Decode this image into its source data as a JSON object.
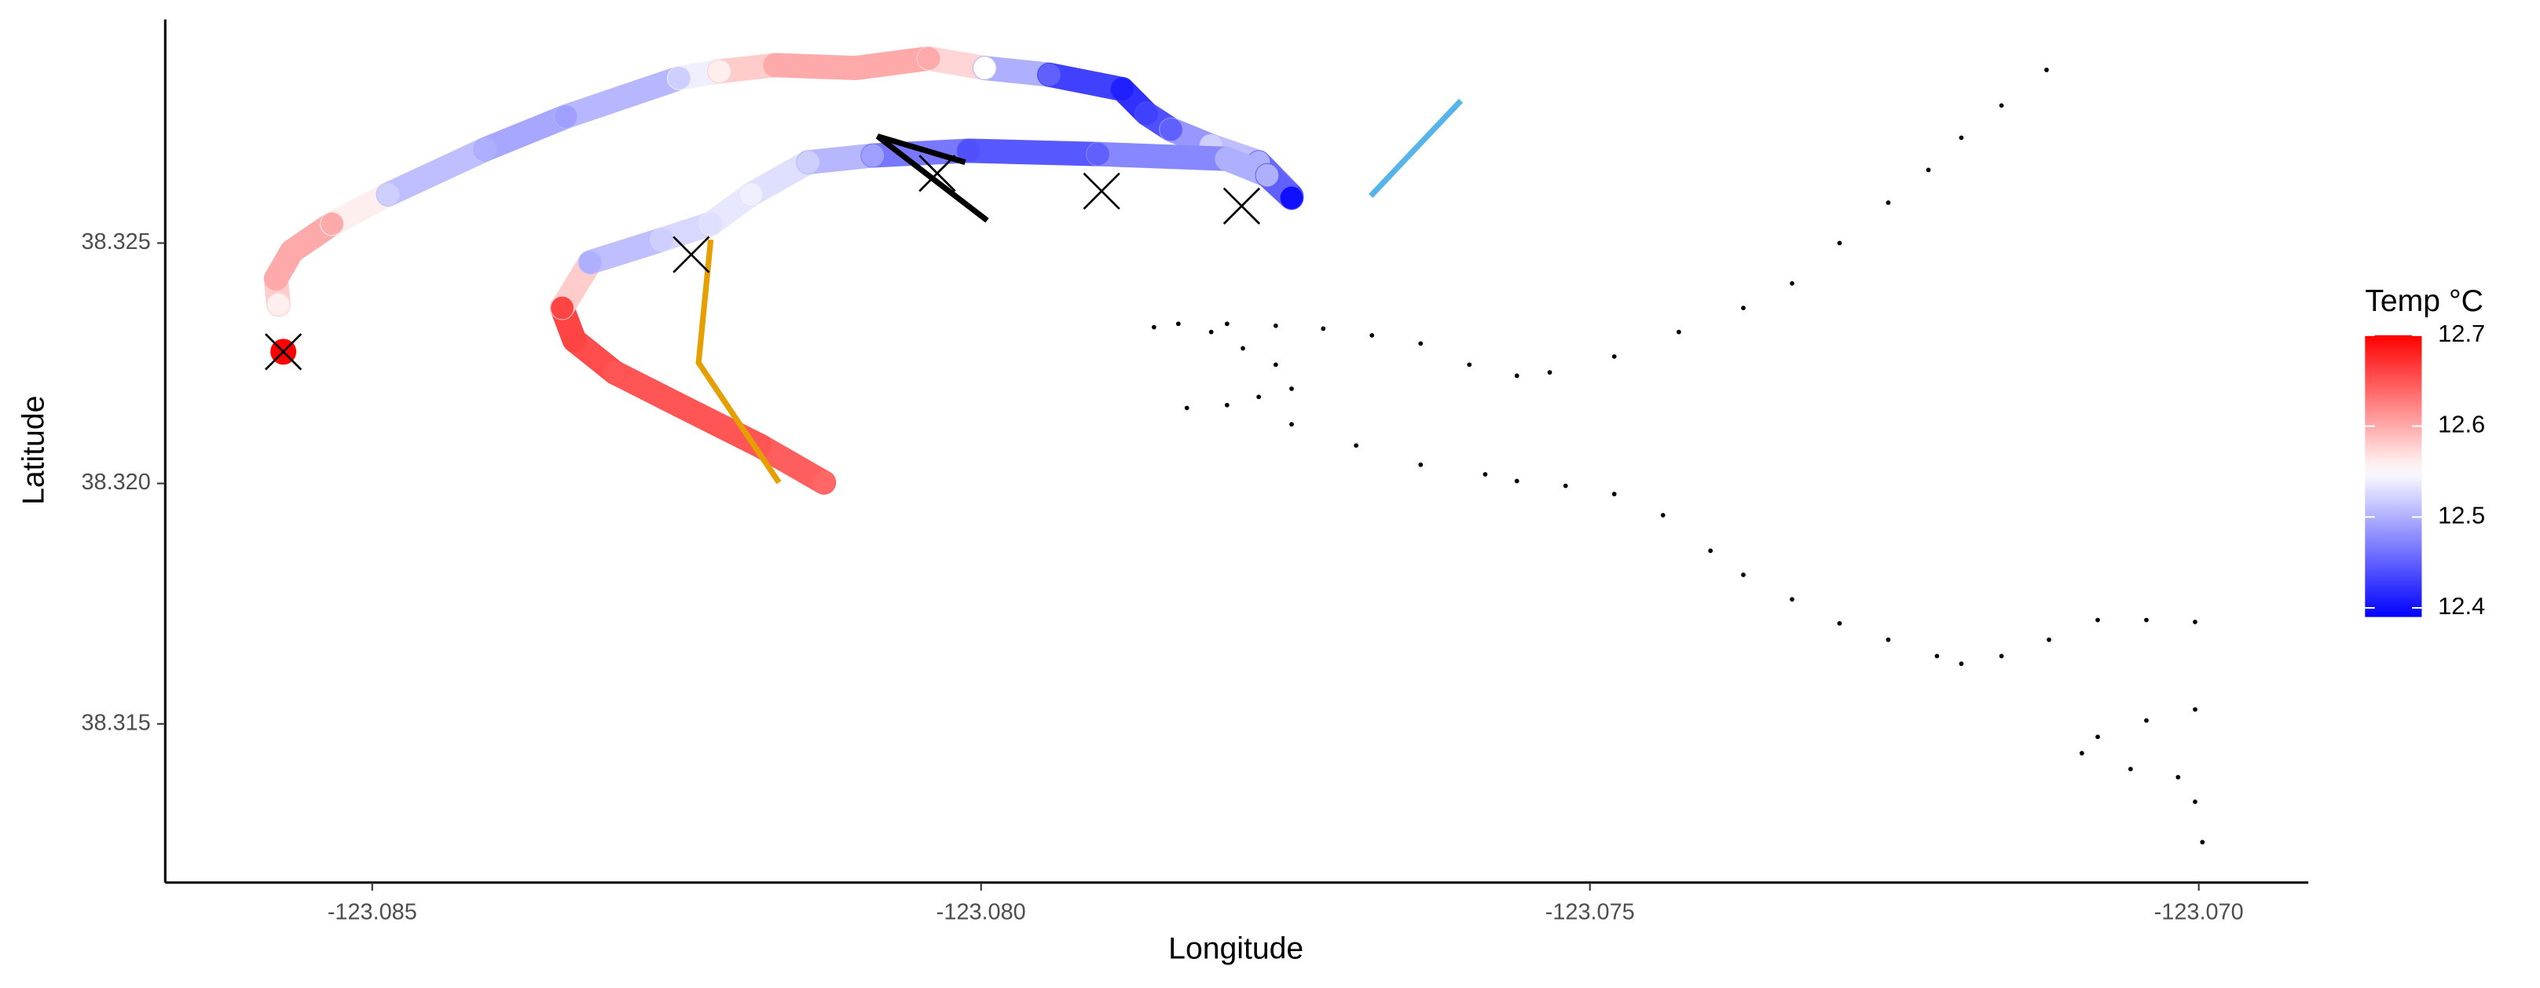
{
  "chart_data": {
    "type": "scatter",
    "x_label": "Longitude",
    "y_label": "Latitude",
    "xlim": [
      -123.0867,
      -123.0691
    ],
    "ylim": [
      38.3117,
      38.32965
    ],
    "xticks": [
      -123.085,
      {
        "value": -123.08,
        "label": "-123.080"
      },
      -123.075,
      {
        "value": -123.07,
        "label": "-123.070"
      }
    ],
    "yticks": [
      38.315,
      {
        "value": 38.32,
        "label": "38.320"
      },
      38.325
    ],
    "color_scale": {
      "title": "Temp °C",
      "low": "#0000ff",
      "mid": "#ffffff",
      "high": "#ff0000",
      "midpoint": 12.55,
      "lim": [
        12.39,
        12.7
      ],
      "ticks": [
        12.4,
        12.5,
        12.6,
        12.7
      ]
    },
    "tracks": [
      {
        "x": [
          -123.08577,
          -123.08579,
          -123.08566,
          -123.08533,
          -123.08487,
          -123.08407,
          -123.08341,
          -123.08248,
          -123.08215,
          -123.08169,
          -123.08103,
          -123.08043,
          -123.07997,
          -123.07944,
          -123.07884,
          -123.07864,
          -123.07844,
          -123.07811,
          -123.07772,
          -123.07745
        ],
        "y": [
          38.32372,
          38.32426,
          38.32483,
          38.3254,
          38.32601,
          38.32695,
          38.32763,
          38.32843,
          38.32857,
          38.3287,
          38.32864,
          38.32884,
          38.32864,
          38.3285,
          38.3282,
          38.32769,
          38.32736,
          38.32702,
          38.32668,
          38.32598
        ],
        "temp": [
          12.56,
          12.6,
          12.6,
          12.6,
          12.52,
          12.5,
          12.49,
          12.52,
          12.56,
          12.6,
          12.6,
          12.6,
          12.55,
          12.45,
          12.41,
          12.43,
          12.45,
          12.52,
          12.5,
          12.41
        ]
      },
      {
        "x": [
          -123.08129,
          -123.08182,
          -123.08248,
          -123.08301,
          -123.08334,
          -123.08344,
          -123.08321,
          -123.08262,
          -123.08222,
          -123.08189,
          -123.08142,
          -123.08089,
          -123.0801,
          -123.07904,
          -123.07798,
          -123.07765,
          -123.07745
        ],
        "y": [
          38.32002,
          38.32079,
          38.32163,
          38.32231,
          38.32298,
          38.32365,
          38.3246,
          38.32507,
          38.3254,
          38.32601,
          38.32668,
          38.32682,
          38.32692,
          38.32685,
          38.32675,
          38.32641,
          38.32594
        ],
        "temp": [
          12.64,
          12.65,
          12.65,
          12.65,
          12.66,
          12.66,
          12.5,
          12.52,
          12.53,
          12.54,
          12.52,
          12.49,
          12.44,
          12.45,
          12.5,
          12.5,
          12.4
        ]
      }
    ],
    "dots": {
      "color": "#000000",
      "x": [
        -123.07125,
        -123.07162,
        -123.07195,
        -123.07222,
        -123.07255,
        -123.07295,
        -123.07334,
        -123.07374,
        -123.07427,
        -123.0748,
        -123.07533,
        -123.0756,
        -123.07599,
        -123.07639,
        -123.07679,
        -123.07719,
        -123.07758,
        -123.07798,
        -123.07838,
        -123.07858,
        -123.07811,
        -123.07785,
        -123.07758,
        -123.07745,
        -123.07772,
        -123.07798,
        -123.07831,
        -123.07745,
        -123.07692,
        -123.07639,
        -123.07586,
        -123.0756,
        -123.0752,
        -123.0748,
        -123.0744,
        -123.07401,
        -123.07374,
        -123.07334,
        -123.07295,
        -123.07255,
        -123.07215,
        -123.07195,
        -123.07162,
        -123.07123,
        -123.07083,
        -123.07043,
        -123.07003,
        -123.07003,
        -123.07043,
        -123.07083,
        -123.07096,
        -123.07056,
        -123.07017,
        -123.07003,
        -123.06997
      ],
      "y": [
        38.3286,
        38.32786,
        38.32719,
        38.32652,
        38.32584,
        38.325,
        38.32416,
        38.32365,
        38.32315,
        38.32264,
        38.32231,
        38.32224,
        38.32247,
        38.32291,
        38.32308,
        38.32322,
        38.32328,
        38.32332,
        38.32332,
        38.32325,
        38.32315,
        38.32281,
        38.32247,
        38.32197,
        38.3218,
        38.32163,
        38.32157,
        38.32123,
        38.32079,
        38.32039,
        38.32019,
        38.32005,
        38.31995,
        38.31978,
        38.31934,
        38.3186,
        38.3181,
        38.31759,
        38.31709,
        38.31675,
        38.31641,
        38.31625,
        38.31641,
        38.31675,
        38.31716,
        38.31716,
        38.31712,
        38.3153,
        38.31507,
        38.31473,
        38.31439,
        38.31406,
        38.31389,
        38.31338,
        38.31254
      ]
    },
    "crosses": {
      "color": "#000000",
      "x": [
        -123.08573,
        -123.08238,
        -123.08036,
        -123.07901,
        -123.07786
      ],
      "y": [
        38.32274,
        38.32476,
        38.32645,
        38.32608,
        38.32577
      ]
    },
    "highlight": {
      "color": "#ff0000",
      "x": [
        -123.08573
      ],
      "y": [
        38.32274
      ]
    },
    "lines": [
      {
        "color": "#e69f00",
        "x": [
          -123.08222,
          -123.08232,
          -123.08166
        ],
        "y": [
          38.32507,
          38.32251,
          38.32002
        ]
      },
      {
        "color": "#56b4e9",
        "x": [
          -123.0768,
          -123.07606
        ],
        "y": [
          38.32598,
          38.32796
        ]
      },
      {
        "color": "#000000",
        "x": [
          -123.08013,
          -123.08085,
          -123.07995
        ],
        "y": [
          38.32668,
          38.32722,
          38.32547
        ]
      }
    ]
  }
}
